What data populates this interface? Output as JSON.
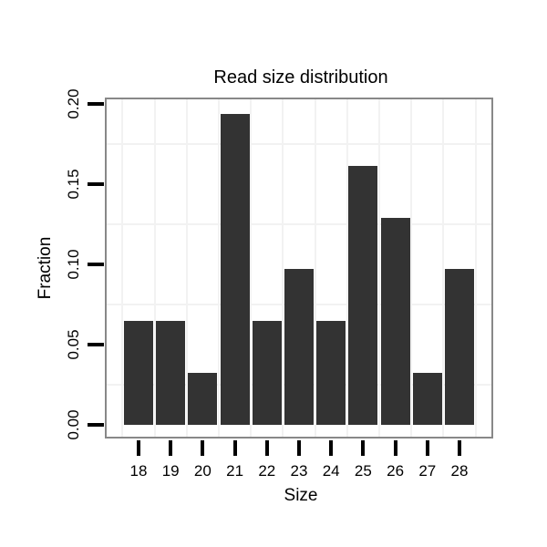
{
  "chart_data": {
    "type": "bar",
    "title": "Read size distribution",
    "xlabel": "Size",
    "ylabel": "Fraction",
    "categories": [
      "18",
      "19",
      "20",
      "21",
      "22",
      "23",
      "24",
      "25",
      "26",
      "27",
      "28"
    ],
    "values": [
      0.0645,
      0.0645,
      0.0323,
      0.1935,
      0.0645,
      0.0968,
      0.0645,
      0.1613,
      0.129,
      0.0323,
      0.0968
    ],
    "y_ticks": [
      "0.00",
      "0.05",
      "0.10",
      "0.15",
      "0.20"
    ],
    "y_tick_values": [
      0,
      0.05,
      0.1,
      0.15,
      0.2
    ],
    "ylim": [
      0,
      0.2
    ],
    "grid": "minor-gridlines-only",
    "legend": "none",
    "colors": {
      "bar": "#333333",
      "panel_border": "#888888",
      "gridline": "#f2f2f2",
      "tick": "#000000",
      "text": "#000000",
      "background": "#ffffff"
    }
  }
}
